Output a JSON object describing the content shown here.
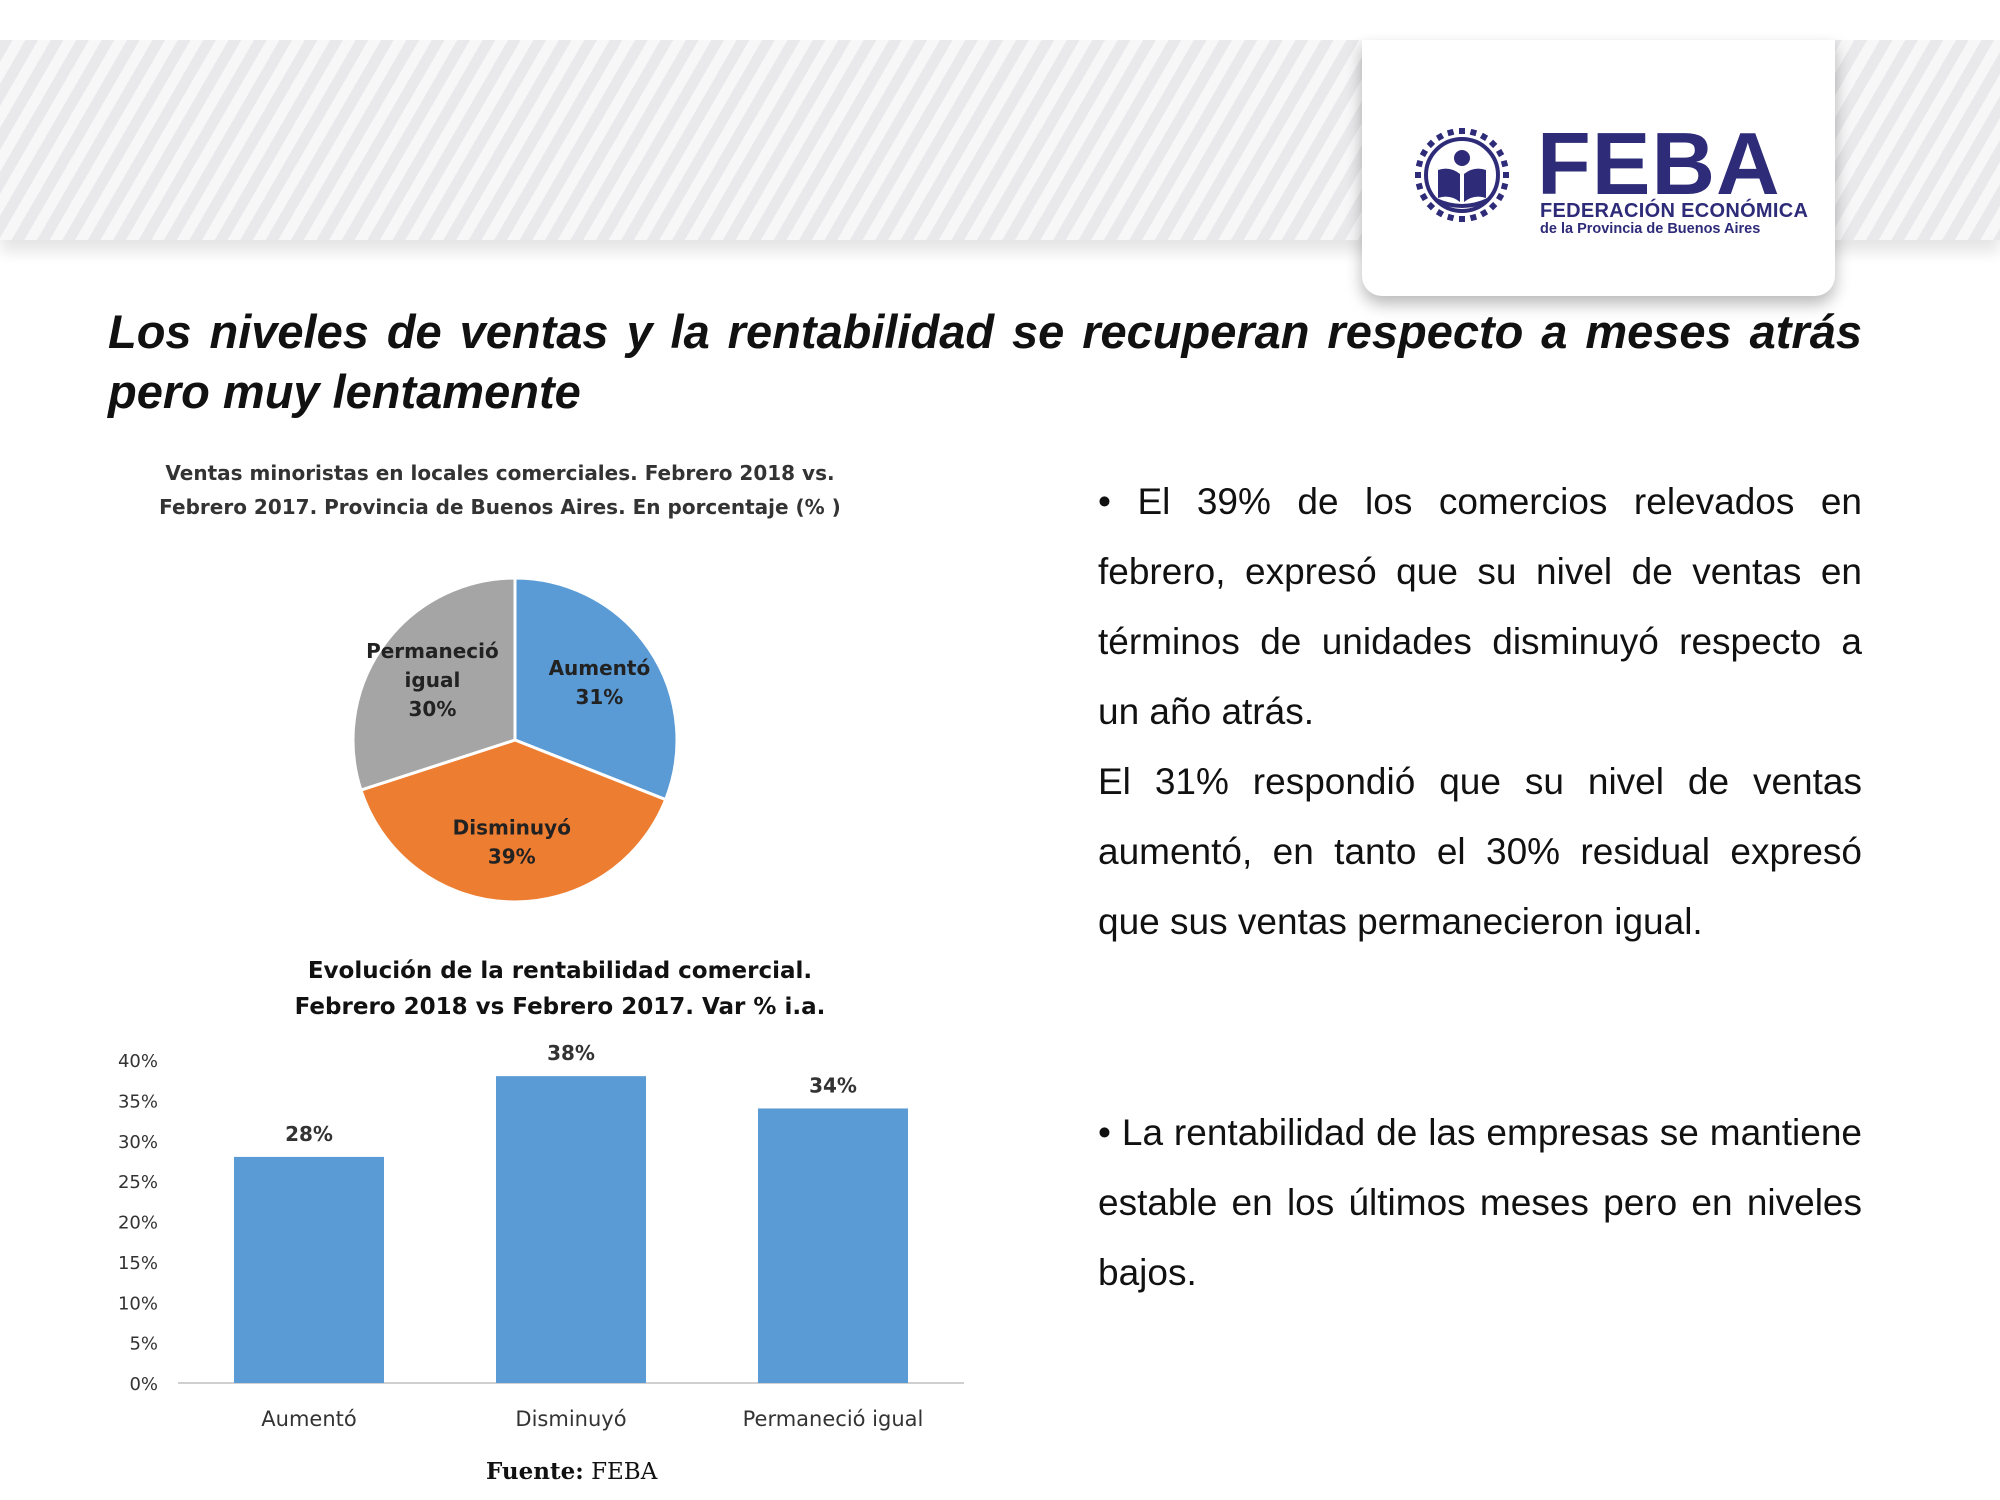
{
  "logo": {
    "emblem_text": "FEBA",
    "wordmark": "FEBA",
    "subtitle_line1": "FEDERACIÓN ECONÓMICA",
    "subtitle_line2": "de la Provincia de Buenos Aires"
  },
  "title": "Los niveles de ventas y la rentabilidad se recuperan respecto a meses atrás pero muy lentamente",
  "pie_chart": {
    "title_line1": "Ventas minoristas en locales comerciales. Febrero  2018 vs.",
    "title_line2": "Febrero 2017. Provincia de Buenos Aires.  En porcentaje (% )"
  },
  "bar_chart": {
    "title_line1": "Evolución de la rentabilidad comercial.",
    "title_line2": "Febrero  2018  vs  Febrero 2017. Var % i.a."
  },
  "chart_data": [
    {
      "type": "pie",
      "title": "Ventas minoristas en locales comerciales. Febrero  2018 vs. Febrero 2017. Provincia de Buenos Aires.  En porcentaje (% )",
      "slices": [
        {
          "label": "Aumentó",
          "value": 31,
          "value_label": "31%",
          "color": "#5b9bd5"
        },
        {
          "label": "Disminuyó",
          "value": 39,
          "value_label": "39%",
          "color": "#ed7d31"
        },
        {
          "label": "Permaneció igual",
          "value": 30,
          "value_label": "30%",
          "color": "#a5a5a5"
        }
      ]
    },
    {
      "type": "bar",
      "title": "Evolución de la rentabilidad comercial. Febrero  2018  vs  Febrero 2017. Var % i.a.",
      "categories": [
        "Aumentó",
        "Disminuyó",
        "Permaneció igual"
      ],
      "values": [
        28,
        38,
        34
      ],
      "value_labels": [
        "28%",
        "38%",
        "34%"
      ],
      "ylim": [
        0,
        40
      ],
      "yticks": [
        "0%",
        "5%",
        "10%",
        "15%",
        "20%",
        "25%",
        "30%",
        "35%",
        "40%"
      ],
      "bar_color": "#5b9bd5",
      "grid": false
    }
  ],
  "bullets": {
    "b1_p1": "• El 39% de los comercios relevados en febrero, expresó que su nivel de ventas en términos de unidades disminuyó respecto a un año atrás.",
    "b1_p2": "El 31% respondió que su nivel de ventas aumentó, en tanto el 30% residual expresó que sus ventas permanecieron igual.",
    "b2_p1": "• La rentabilidad de las empresas se mantiene estable en los últimos meses pero en niveles bajos."
  },
  "source": {
    "label": "Fuente:",
    "value": "FEBA"
  }
}
